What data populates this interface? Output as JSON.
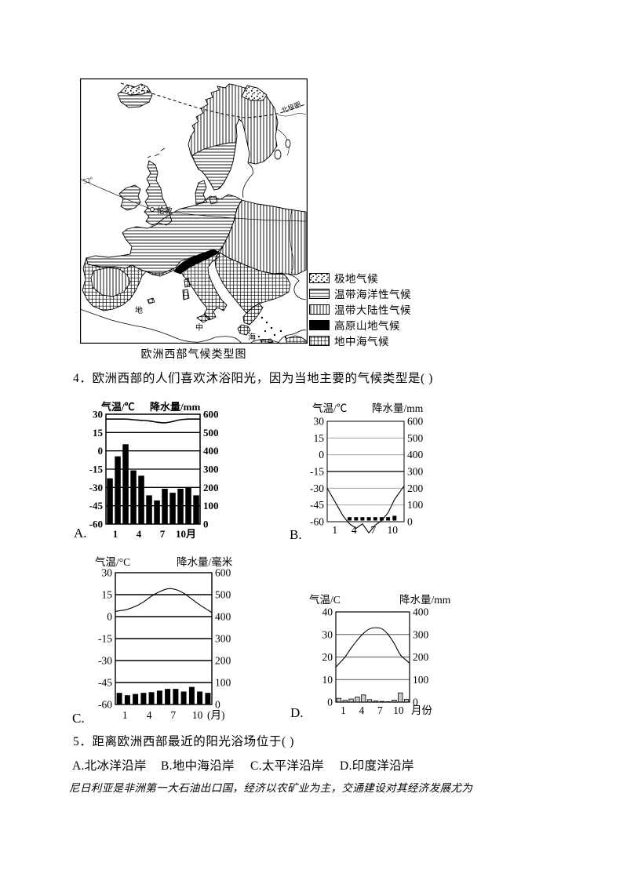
{
  "map": {
    "caption": "欧洲西部气候类型图",
    "labels": {
      "arctic_circle": "北极圈",
      "lat52": "52°",
      "london": "伦敦",
      "sea1": "地",
      "sea2": "中",
      "sea3": "海"
    },
    "legend": [
      {
        "pattern": "dots",
        "label": "极地气候"
      },
      {
        "pattern": "hlines",
        "label": "温带海洋性气候"
      },
      {
        "pattern": "vlines",
        "label": "温带大陆性气候"
      },
      {
        "pattern": "black",
        "label": "高原山地气候"
      },
      {
        "pattern": "grid",
        "label": "地中海气候"
      }
    ]
  },
  "questions": {
    "q4": "4．欧洲西部的人们喜欢沐浴阳光，因为当地主要的气候类型是( )",
    "q5": "5．距离欧洲西部最近的阳光浴场位于( )",
    "q5_options": [
      "A.北冰洋沿岸",
      "B.地中海沿岸",
      "C.太平洋沿岸",
      "D.印度洋沿岸"
    ],
    "note": "尼日利亚是非洲第一大石油出口国，经济以农矿业为主，交通建设对其经济发展尤为"
  },
  "chart_data": [
    {
      "id": "A",
      "corner_label": "A.",
      "type": "climograph-bar-line",
      "temp_title": "气温/℃",
      "precip_title": "降水量/mm",
      "temp_ticks": [
        30,
        15,
        0,
        -15,
        -30,
        -45,
        -60
      ],
      "precip_ticks": [
        600,
        500,
        400,
        300,
        200,
        100,
        0
      ],
      "x_ticks": [
        {
          "month": 1,
          "label": "1"
        },
        {
          "month": 4,
          "label": "4"
        },
        {
          "month": 7,
          "label": "7"
        },
        {
          "month": 10,
          "label": "10月"
        }
      ],
      "temperature_c": [
        26,
        26,
        26,
        25.5,
        25,
        24.5,
        23.5,
        23,
        24,
        25.5,
        26,
        26
      ],
      "precipitation_mm": [
        250,
        370,
        436,
        293,
        264,
        157,
        129,
        193,
        171,
        193,
        200,
        157
      ]
    },
    {
      "id": "B",
      "corner_label": "B.",
      "type": "climograph-bar-line",
      "temp_title": "气温/℃",
      "precip_title": "降水量/mm",
      "temp_ticks": [
        30,
        15,
        0,
        -15,
        -30,
        -45,
        -60
      ],
      "precip_ticks": [
        600,
        500,
        400,
        300,
        200,
        100,
        0
      ],
      "x_ticks": [
        {
          "month": 1,
          "label": "1"
        },
        {
          "month": 4,
          "label": "4"
        },
        {
          "month": 7,
          "label": "7"
        },
        {
          "month": 10,
          "label": "10"
        }
      ],
      "temperature_c": [
        -35,
        -45,
        -55,
        -62,
        -66,
        -62,
        -70,
        -63,
        -59,
        -52,
        -40,
        -32
      ],
      "precipitation_mm": [
        0,
        0,
        0,
        20,
        20,
        20,
        20,
        20,
        20,
        20,
        28,
        0
      ]
    },
    {
      "id": "C",
      "corner_label": "C.",
      "type": "climograph-bar-line",
      "temp_title": "气温/°C",
      "precip_title": "降水量/毫米",
      "temp_ticks": [
        30,
        15,
        0,
        -15,
        -30,
        -45,
        -60
      ],
      "precip_ticks": [
        600,
        500,
        400,
        300,
        200,
        100,
        0
      ],
      "x_ticks": [
        {
          "month": 1,
          "label": "1"
        },
        {
          "month": 4,
          "label": "4"
        },
        {
          "month": 7,
          "label": "7"
        },
        {
          "month": 10,
          "label": "10"
        }
      ],
      "x_suffix": "(月)",
      "temperature_c": [
        4,
        5,
        7,
        10,
        14,
        17,
        19,
        18.5,
        16,
        12,
        8,
        4.5
      ],
      "precipitation_mm": [
        53,
        42,
        48,
        53,
        56,
        63,
        71,
        71,
        59,
        80,
        59,
        53
      ]
    },
    {
      "id": "D",
      "corner_label": "D.",
      "type": "climograph-bar-line",
      "temp_title": "气温/C",
      "precip_title": "降水量/mm",
      "temp_ticks": [
        40,
        30,
        20,
        10,
        0
      ],
      "precip_ticks": [
        400,
        300,
        200,
        100,
        0
      ],
      "x_ticks": [
        {
          "month": 1,
          "label": "1"
        },
        {
          "month": 4,
          "label": "4"
        },
        {
          "month": 7,
          "label": "7"
        },
        {
          "month": 10,
          "label": "10"
        }
      ],
      "x_suffix": "月份",
      "temperature_c": [
        17,
        20,
        24,
        27.5,
        30.5,
        32.5,
        33,
        32.5,
        30,
        26,
        21,
        18.5
      ],
      "precipitation_mm": [
        17,
        8,
        14,
        23,
        32,
        11,
        5,
        3,
        2,
        9,
        41,
        12
      ]
    }
  ]
}
